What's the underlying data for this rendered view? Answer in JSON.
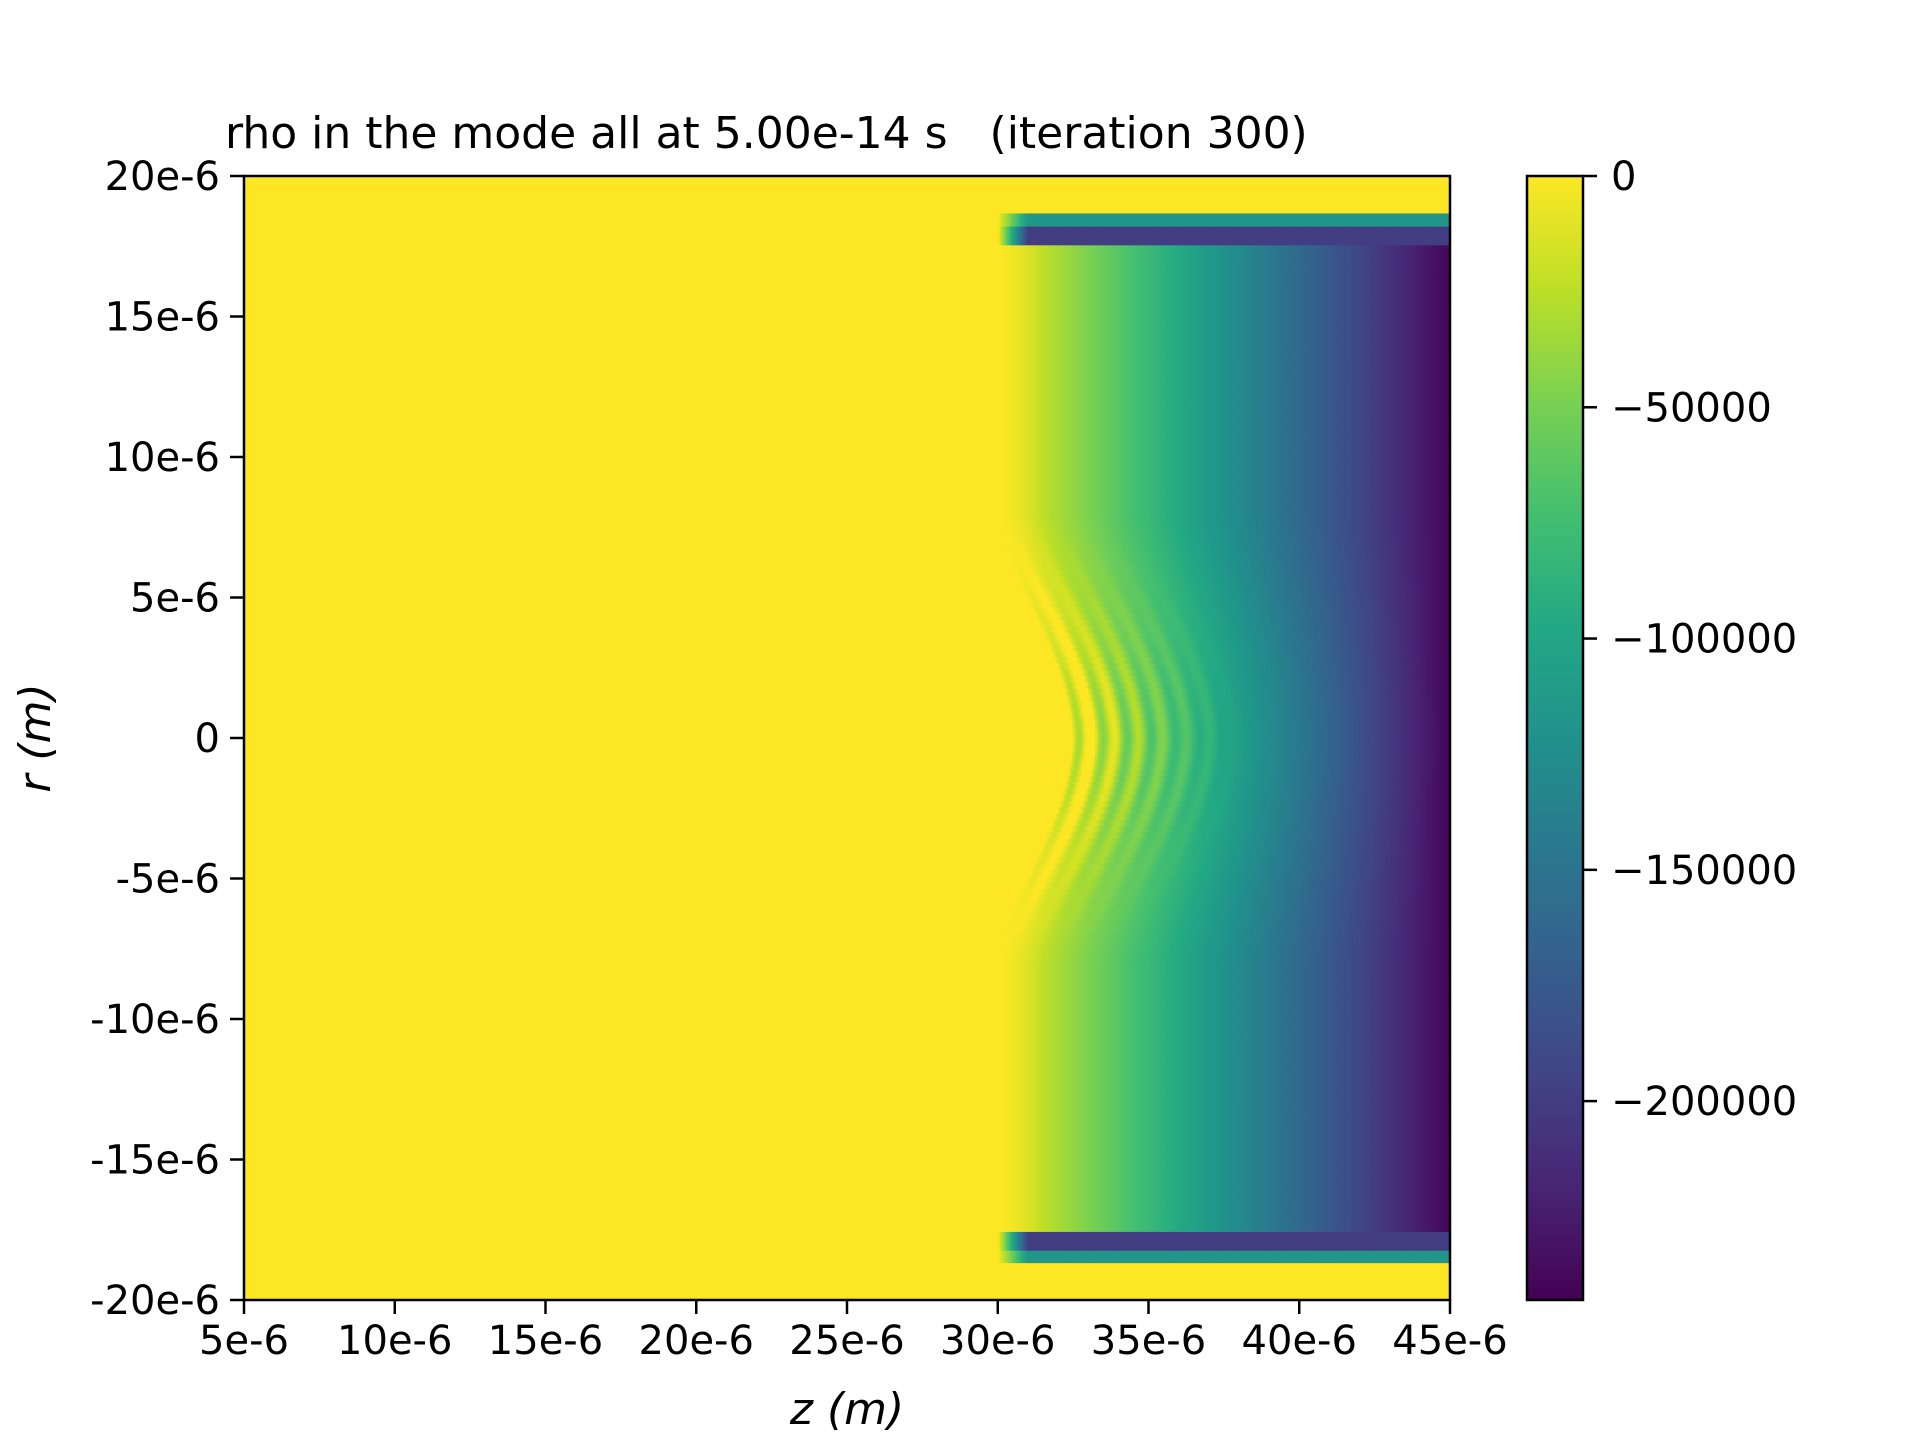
{
  "chart_data": {
    "type": "heatmap",
    "title": "rho in the mode all at 5.00e-14 s   (iteration 300)",
    "xlabel": "z (m)",
    "ylabel": "r (m)",
    "xlim": [
      5e-06,
      4.5e-05
    ],
    "ylim": [
      -2e-05,
      2e-05
    ],
    "x_ticks": [
      5e-06,
      1e-05,
      1.5e-05,
      2e-05,
      2.5e-05,
      3e-05,
      3.5e-05,
      4e-05,
      4.5e-05
    ],
    "x_tick_labels": [
      "5e-6",
      "10e-6",
      "15e-6",
      "20e-6",
      "25e-6",
      "30e-6",
      "35e-6",
      "40e-6",
      "45e-6"
    ],
    "y_ticks": [
      2e-05,
      1.5e-05,
      1e-05,
      5e-06,
      0,
      -5e-06,
      -1e-05,
      -1.5e-05,
      -2e-05
    ],
    "y_tick_labels": [
      "20e-6",
      "15e-6",
      "10e-6",
      "5e-6",
      "0",
      "-5e-6",
      "-10e-6",
      "-15e-6",
      "-20e-6"
    ],
    "colormap": "viridis",
    "colorbar": {
      "vmin": -243000,
      "vmax": 0,
      "ticks": [
        0,
        -50000,
        -100000,
        -150000,
        -200000
      ],
      "tick_labels": [
        "0",
        "−50000",
        "−100000",
        "−150000",
        "−200000"
      ]
    },
    "field_description": {
      "background_value": 0,
      "plasma_start_z": 3e-05,
      "plasma_ramp_end_z": 3.15e-05,
      "plasma_edge_r": 1.75e-05,
      "end_value_at_zmax": -240000,
      "wake_region_z": [
        3.1e-05,
        3.8e-05
      ],
      "wake_region_r": [
        -7e-06,
        7e-06
      ]
    },
    "grid": false
  }
}
